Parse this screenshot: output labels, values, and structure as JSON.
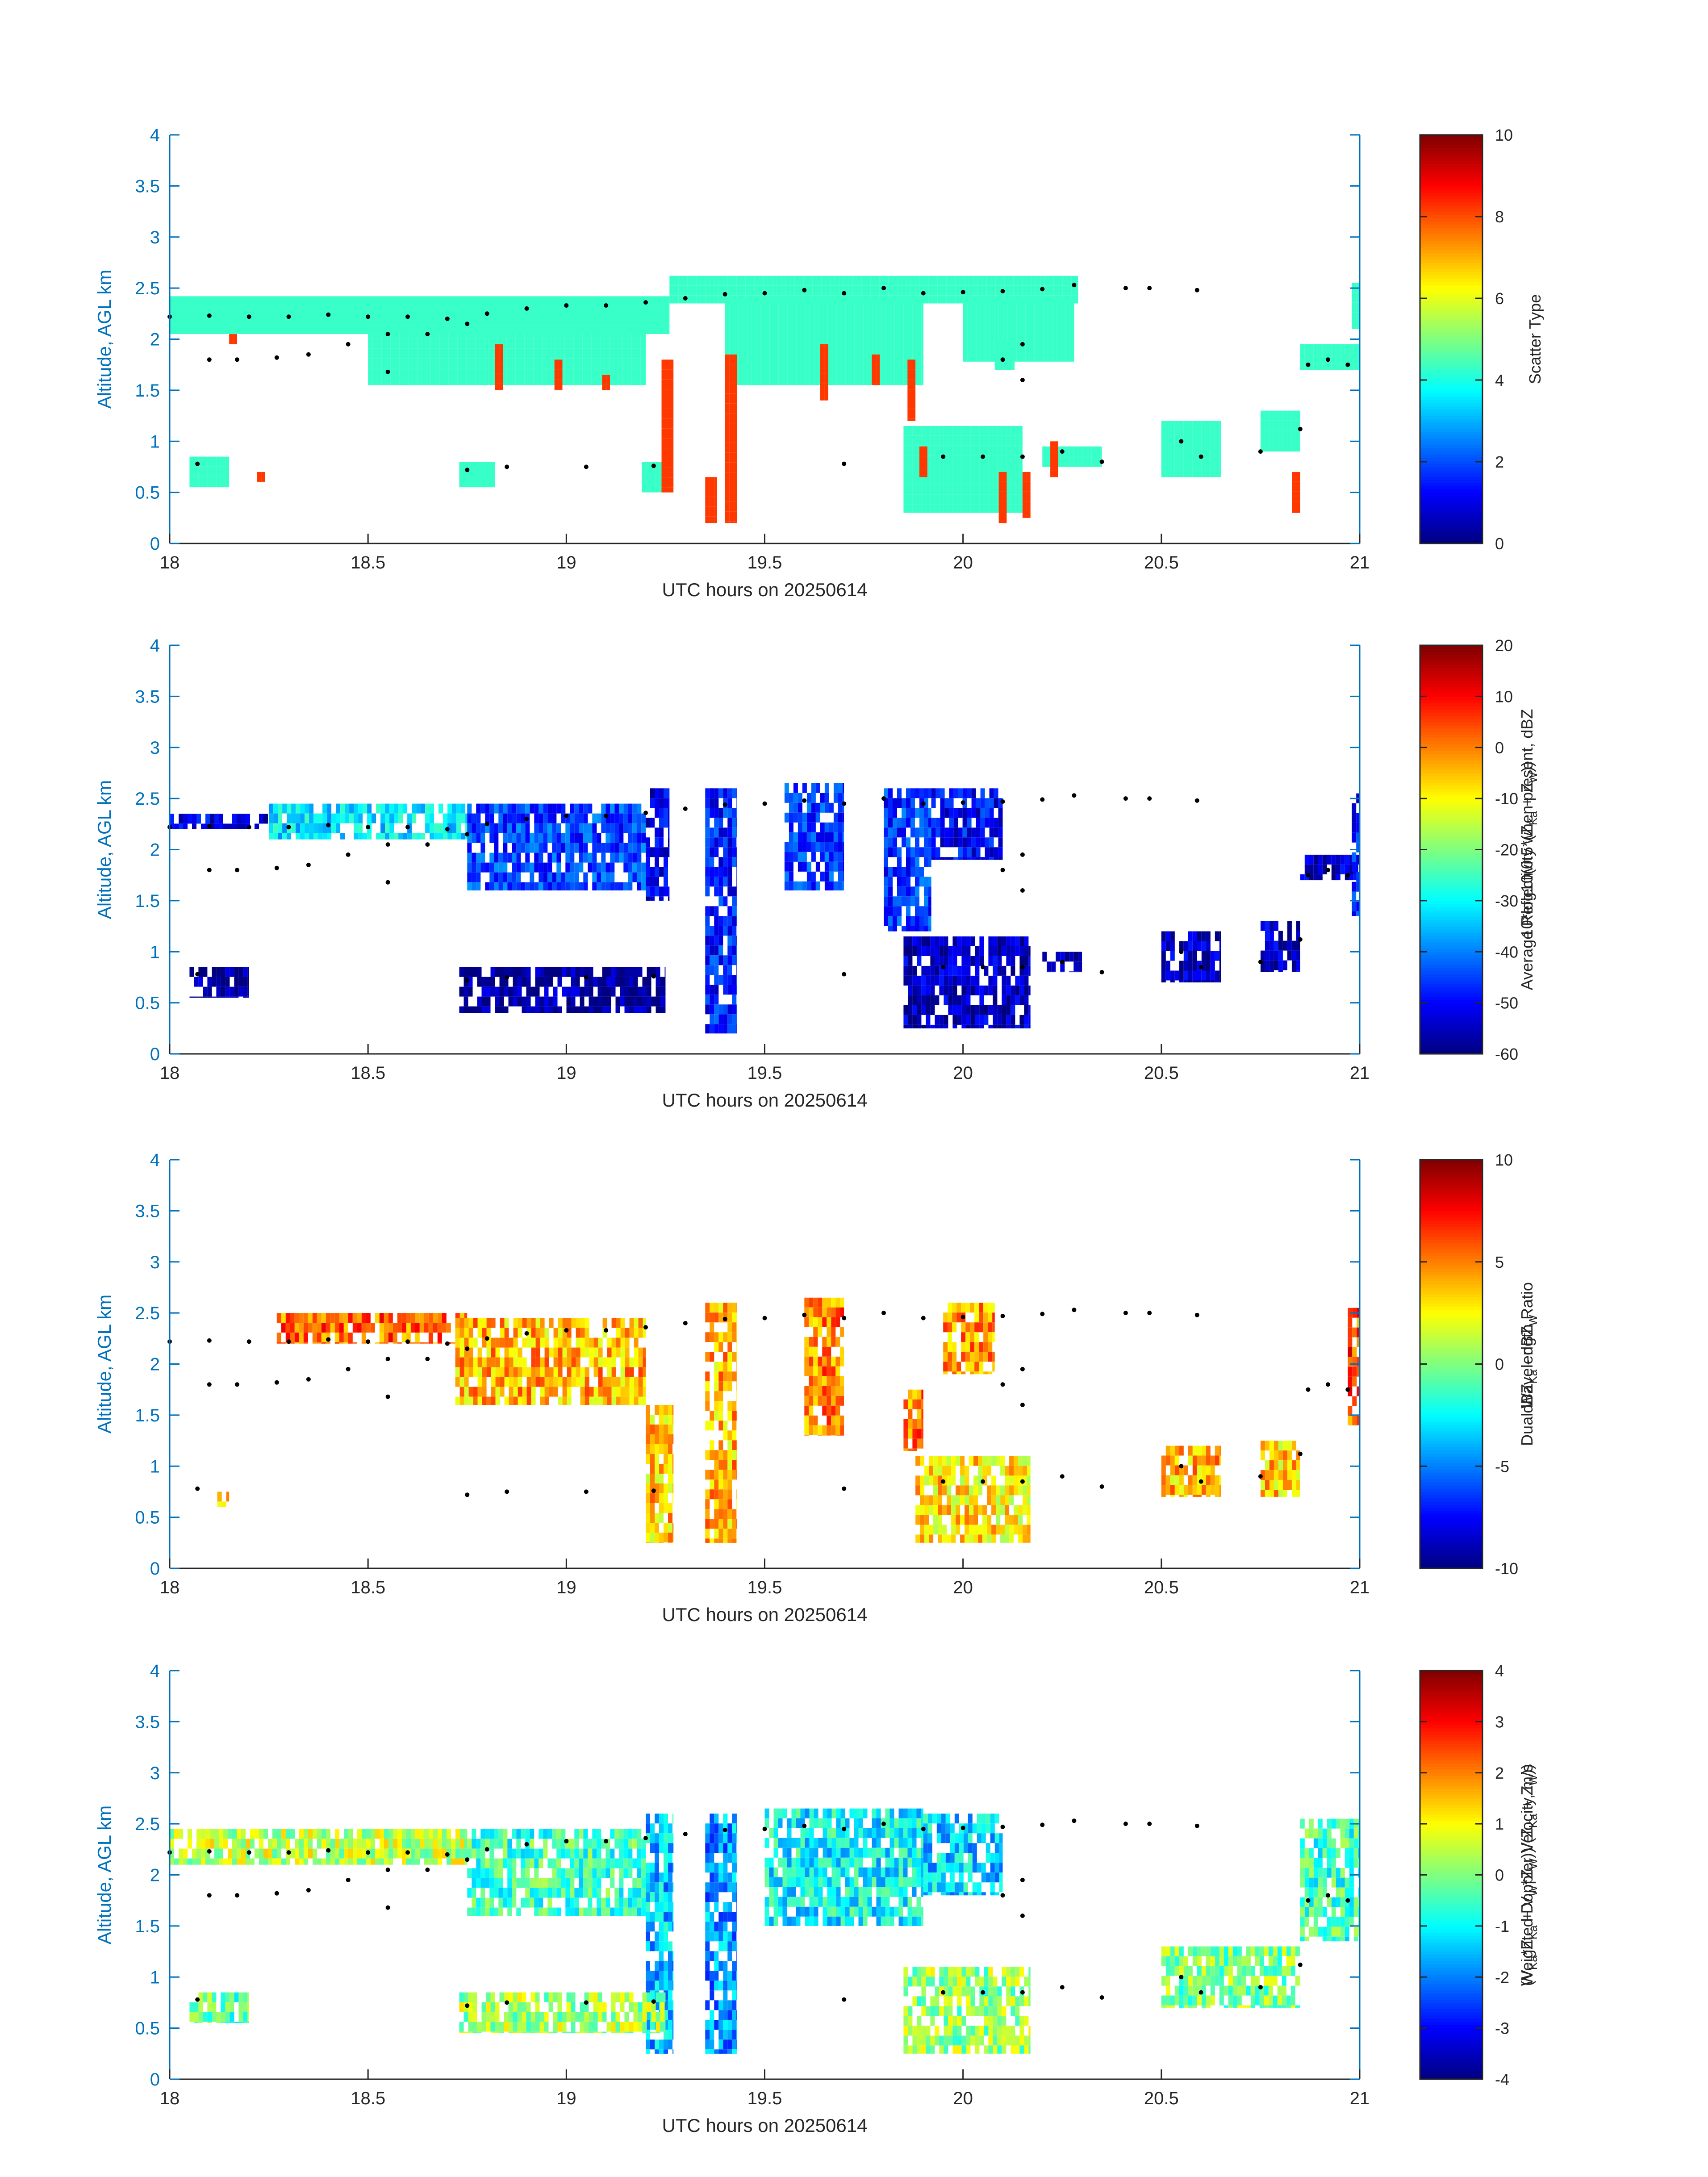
{
  "chart_data": [
    {
      "type": "heatmap",
      "panel": "scatter-type",
      "xlabel": "UTC hours on 20250614",
      "ylabel": "Altitude, AGL km",
      "xlim": [
        18,
        21
      ],
      "ylim": [
        0,
        4
      ],
      "xticks": [
        "18",
        "18.5",
        "19",
        "19.5",
        "20",
        "20.5",
        "21"
      ],
      "yticks": [
        "0",
        "0.5",
        "1",
        "1.5",
        "2",
        "2.5",
        "3",
        "3.5",
        "4"
      ],
      "colorbar": {
        "label_lines": [
          "Scatter Type"
        ],
        "range": [
          0,
          10
        ],
        "ticks": [
          "0",
          "2",
          "4",
          "6",
          "8",
          "10"
        ],
        "colormap": "jet"
      },
      "grid": false,
      "regions": [
        {
          "x": [
            18.0,
            19.26
          ],
          "y": [
            2.05,
            2.42
          ],
          "value": 4.3
        },
        {
          "x": [
            19.26,
            20.29
          ],
          "y": [
            2.35,
            2.62
          ],
          "value": 4.3
        },
        {
          "x": [
            20.0,
            20.28
          ],
          "y": [
            1.78,
            2.4
          ],
          "value": 4.3
        },
        {
          "x": [
            18.5,
            19.2
          ],
          "y": [
            1.55,
            2.1
          ],
          "value": 4.3
        },
        {
          "x": [
            19.4,
            19.9
          ],
          "y": [
            1.55,
            2.4
          ],
          "value": 4.3
        },
        {
          "x": [
            20.08,
            20.13
          ],
          "y": [
            1.7,
            2.0
          ],
          "value": 4.3
        },
        {
          "x": [
            20.85,
            21.0
          ],
          "y": [
            1.7,
            1.95
          ],
          "value": 4.3
        },
        {
          "x": [
            20.98,
            21.0
          ],
          "y": [
            2.1,
            2.55
          ],
          "value": 4.3
        },
        {
          "x": [
            19.85,
            20.15
          ],
          "y": [
            0.3,
            1.15
          ],
          "value": 4.3
        },
        {
          "x": [
            20.2,
            20.35
          ],
          "y": [
            0.75,
            0.95
          ],
          "value": 4.3
        },
        {
          "x": [
            20.5,
            20.65
          ],
          "y": [
            0.65,
            1.2
          ],
          "value": 4.3
        },
        {
          "x": [
            20.75,
            20.85
          ],
          "y": [
            0.9,
            1.3
          ],
          "value": 4.3
        },
        {
          "x": [
            18.05,
            18.15
          ],
          "y": [
            0.55,
            0.85
          ],
          "value": 4.3
        },
        {
          "x": [
            18.73,
            18.82
          ],
          "y": [
            0.55,
            0.8
          ],
          "value": 4.3
        },
        {
          "x": [
            19.19,
            19.26
          ],
          "y": [
            0.5,
            0.8
          ],
          "value": 4.3
        },
        {
          "x": [
            18.82,
            18.84
          ],
          "y": [
            1.5,
            1.95
          ],
          "value": 8.2
        },
        {
          "x": [
            18.97,
            18.99
          ],
          "y": [
            1.5,
            1.8
          ],
          "value": 8.2
        },
        {
          "x": [
            19.09,
            19.11
          ],
          "y": [
            1.5,
            1.65
          ],
          "value": 8.2
        },
        {
          "x": [
            19.24,
            19.27
          ],
          "y": [
            0.5,
            1.8
          ],
          "value": 8.2
        },
        {
          "x": [
            19.35,
            19.38
          ],
          "y": [
            0.2,
            0.65
          ],
          "value": 8.2
        },
        {
          "x": [
            19.4,
            19.43
          ],
          "y": [
            0.2,
            1.85
          ],
          "value": 8.2
        },
        {
          "x": [
            19.64,
            19.66
          ],
          "y": [
            1.4,
            1.95
          ],
          "value": 8.2
        },
        {
          "x": [
            19.77,
            19.79
          ],
          "y": [
            1.55,
            1.85
          ],
          "value": 8.2
        },
        {
          "x": [
            19.86,
            19.88
          ],
          "y": [
            1.2,
            1.8
          ],
          "value": 8.2
        },
        {
          "x": [
            19.89,
            19.91
          ],
          "y": [
            0.65,
            0.95
          ],
          "value": 8.2
        },
        {
          "x": [
            20.09,
            20.11
          ],
          "y": [
            0.2,
            0.7
          ],
          "value": 8.2
        },
        {
          "x": [
            20.15,
            20.17
          ],
          "y": [
            0.25,
            0.7
          ],
          "value": 8.2
        },
        {
          "x": [
            20.22,
            20.24
          ],
          "y": [
            0.65,
            1.0
          ],
          "value": 8.2
        },
        {
          "x": [
            20.83,
            20.85
          ],
          "y": [
            0.3,
            0.7
          ],
          "value": 8.2
        },
        {
          "x": [
            18.22,
            18.24
          ],
          "y": [
            0.6,
            0.7
          ],
          "value": 8.2
        },
        {
          "x": [
            18.15,
            18.17
          ],
          "y": [
            1.95,
            2.05
          ],
          "value": 8.2
        }
      ]
    },
    {
      "type": "heatmap",
      "panel": "reflectivity",
      "xlabel": "UTC hours on 20250614",
      "ylabel": "Altitude, AGL km",
      "xlim": [
        18,
        21
      ],
      "ylim": [
        0,
        4
      ],
      "xticks": [
        "18",
        "18.5",
        "19",
        "19.5",
        "20",
        "20.5",
        "21"
      ],
      "yticks": [
        "0",
        "0.5",
        "1",
        "1.5",
        "2",
        "2.5",
        "3",
        "3.5",
        "4"
      ],
      "colorbar": {
        "label_lines": [
          "Average Reflectivity when present, dBZ",
          "10*log10(0.5*(Z",
          "Ka",
          " + Z",
          "W",
          "))"
        ],
        "range": [
          -60,
          20
        ],
        "ticks": [
          "-60",
          "-50",
          "-40",
          "-30",
          "-20",
          "-10",
          "0",
          "10",
          "20"
        ],
        "colormap": "jet"
      },
      "grid": false,
      "regions": [
        {
          "x": [
            18.0,
            18.25
          ],
          "y": [
            2.2,
            2.35
          ],
          "value": -52
        },
        {
          "x": [
            18.25,
            18.75
          ],
          "y": [
            2.1,
            2.45
          ],
          "value": -32
        },
        {
          "x": [
            18.75,
            19.2
          ],
          "y": [
            1.6,
            2.45
          ],
          "value": -45
        },
        {
          "x": [
            19.2,
            19.26
          ],
          "y": [
            1.5,
            2.6
          ],
          "value": -52
        },
        {
          "x": [
            19.35,
            19.43
          ],
          "y": [
            0.2,
            2.6
          ],
          "value": -48
        },
        {
          "x": [
            19.55,
            19.7
          ],
          "y": [
            1.6,
            2.65
          ],
          "value": -46
        },
        {
          "x": [
            19.8,
            19.92
          ],
          "y": [
            1.2,
            2.6
          ],
          "value": -46
        },
        {
          "x": [
            19.92,
            20.1
          ],
          "y": [
            1.9,
            2.6
          ],
          "value": -50
        },
        {
          "x": [
            19.85,
            20.17
          ],
          "y": [
            0.25,
            1.15
          ],
          "value": -55
        },
        {
          "x": [
            20.2,
            20.3
          ],
          "y": [
            0.8,
            1.0
          ],
          "value": -57
        },
        {
          "x": [
            20.5,
            20.65
          ],
          "y": [
            0.7,
            1.2
          ],
          "value": -55
        },
        {
          "x": [
            20.75,
            20.85
          ],
          "y": [
            0.8,
            1.3
          ],
          "value": -55
        },
        {
          "x": [
            20.85,
            21.0
          ],
          "y": [
            1.7,
            1.95
          ],
          "value": -55
        },
        {
          "x": [
            20.98,
            21.0
          ],
          "y": [
            1.35,
            2.55
          ],
          "value": -48
        },
        {
          "x": [
            18.05,
            18.2
          ],
          "y": [
            0.55,
            0.85
          ],
          "value": -58
        },
        {
          "x": [
            18.73,
            19.25
          ],
          "y": [
            0.4,
            0.85
          ],
          "value": -58
        }
      ]
    },
    {
      "type": "heatmap",
      "panel": "dual-wavelength-ratio",
      "xlabel": "UTC hours on 20250614",
      "ylabel": "Altitude, AGL km",
      "xlim": [
        18,
        21
      ],
      "ylim": [
        0,
        4
      ],
      "xticks": [
        "18",
        "18.5",
        "19",
        "19.5",
        "20",
        "20.5",
        "21"
      ],
      "yticks": [
        "0",
        "0.5",
        "1",
        "1.5",
        "2",
        "2.5",
        "3",
        "3.5",
        "4"
      ],
      "colorbar": {
        "label_lines": [
          "Dual Wavelength Ratio",
          "dBZ",
          "Ka",
          " - dBZ",
          "W"
        ],
        "range": [
          -10,
          10
        ],
        "ticks": [
          "-10",
          "-5",
          "0",
          "5",
          "10"
        ],
        "colormap": "jet"
      },
      "grid": false,
      "regions": [
        {
          "x": [
            18.27,
            18.75
          ],
          "y": [
            2.2,
            2.5
          ],
          "value": 5.5
        },
        {
          "x": [
            18.72,
            19.2
          ],
          "y": [
            1.6,
            2.45
          ],
          "value": 4.0
        },
        {
          "x": [
            19.2,
            19.27
          ],
          "y": [
            0.25,
            1.6
          ],
          "value": 3.5
        },
        {
          "x": [
            19.35,
            19.43
          ],
          "y": [
            0.25,
            2.6
          ],
          "value": 4.0
        },
        {
          "x": [
            19.6,
            19.7
          ],
          "y": [
            1.3,
            2.65
          ],
          "value": 5.0
        },
        {
          "x": [
            19.85,
            19.9
          ],
          "y": [
            1.15,
            1.75
          ],
          "value": 5.0
        },
        {
          "x": [
            19.95,
            20.08
          ],
          "y": [
            1.9,
            2.6
          ],
          "value": 4.5
        },
        {
          "x": [
            19.88,
            20.17
          ],
          "y": [
            0.25,
            1.1
          ],
          "value": 3.0
        },
        {
          "x": [
            20.5,
            20.65
          ],
          "y": [
            0.7,
            1.2
          ],
          "value": 4.0
        },
        {
          "x": [
            20.75,
            20.85
          ],
          "y": [
            0.7,
            1.25
          ],
          "value": 3.5
        },
        {
          "x": [
            20.97,
            21.0
          ],
          "y": [
            1.4,
            2.55
          ],
          "value": 6.0
        },
        {
          "x": [
            18.12,
            18.15
          ],
          "y": [
            0.6,
            0.75
          ],
          "value": 3.0
        }
      ]
    },
    {
      "type": "heatmap",
      "panel": "doppler-velocity",
      "xlabel": "UTC hours on 20250614",
      "ylabel": "Altitude, AGL km",
      "xlim": [
        18,
        21
      ],
      "ylim": [
        0,
        4
      ],
      "xticks": [
        "18",
        "18.5",
        "19",
        "19.5",
        "20",
        "20.5",
        "21"
      ],
      "yticks": [
        "0",
        "0.5",
        "1",
        "1.5",
        "2",
        "2.5",
        "3",
        "3.5",
        "4"
      ],
      "colorbar": {
        "label_lines": [
          "Weighted Doppler Velocity, m/s",
          "(V",
          "Ka",
          "*Z",
          "Ka",
          " + V",
          "W",
          "*Z",
          "W",
          "))/(Z",
          "Ka",
          " + Z",
          "W",
          "))"
        ],
        "range": [
          -4,
          4
        ],
        "ticks": [
          "-4",
          "-3",
          "-2",
          "-1",
          "0",
          "1",
          "2",
          "3",
          "4"
        ],
        "colormap": "jet"
      },
      "grid": false,
      "regions": [
        {
          "x": [
            18.0,
            18.75
          ],
          "y": [
            2.1,
            2.45
          ],
          "value": 0.5
        },
        {
          "x": [
            18.75,
            19.2
          ],
          "y": [
            1.6,
            2.45
          ],
          "value": -0.5
        },
        {
          "x": [
            19.2,
            19.27
          ],
          "y": [
            0.25,
            2.6
          ],
          "value": -1.5
        },
        {
          "x": [
            19.35,
            19.43
          ],
          "y": [
            0.25,
            2.6
          ],
          "value": -1.8
        },
        {
          "x": [
            19.5,
            19.9
          ],
          "y": [
            1.5,
            2.65
          ],
          "value": -1.0
        },
        {
          "x": [
            19.9,
            20.1
          ],
          "y": [
            1.8,
            2.6
          ],
          "value": -1.3
        },
        {
          "x": [
            19.85,
            20.17
          ],
          "y": [
            0.25,
            1.1
          ],
          "value": 0.2
        },
        {
          "x": [
            20.5,
            20.85
          ],
          "y": [
            0.7,
            1.3
          ],
          "value": 0.0
        },
        {
          "x": [
            20.85,
            21.0
          ],
          "y": [
            1.35,
            2.55
          ],
          "value": -0.5
        },
        {
          "x": [
            18.05,
            18.2
          ],
          "y": [
            0.55,
            0.85
          ],
          "value": -0.3
        },
        {
          "x": [
            18.73,
            19.25
          ],
          "y": [
            0.45,
            0.85
          ],
          "value": 0.3
        }
      ]
    }
  ],
  "cloud_base_dots": {
    "upper": [
      [
        18.0,
        2.22
      ],
      [
        18.1,
        2.23
      ],
      [
        18.2,
        2.22
      ],
      [
        18.3,
        2.22
      ],
      [
        18.4,
        2.24
      ],
      [
        18.5,
        2.22
      ],
      [
        18.6,
        2.22
      ],
      [
        18.7,
        2.2
      ],
      [
        18.8,
        2.25
      ],
      [
        18.9,
        2.3
      ],
      [
        19.0,
        2.33
      ],
      [
        19.1,
        2.33
      ],
      [
        19.2,
        2.36
      ],
      [
        19.3,
        2.4
      ],
      [
        19.4,
        2.44
      ],
      [
        19.5,
        2.45
      ],
      [
        19.6,
        2.48
      ],
      [
        19.7,
        2.45
      ],
      [
        19.8,
        2.5
      ],
      [
        19.9,
        2.45
      ],
      [
        20.0,
        2.46
      ],
      [
        20.1,
        2.47
      ],
      [
        20.2,
        2.49
      ],
      [
        20.28,
        2.53
      ],
      [
        20.41,
        2.5
      ],
      [
        20.47,
        2.5
      ],
      [
        20.59,
        2.48
      ]
    ],
    "lower": [
      [
        18.1,
        1.8
      ],
      [
        18.17,
        1.8
      ],
      [
        18.27,
        1.82
      ],
      [
        18.35,
        1.85
      ],
      [
        18.45,
        1.95
      ],
      [
        18.55,
        2.05
      ],
      [
        18.65,
        2.05
      ],
      [
        18.75,
        2.15
      ],
      [
        20.1,
        1.8
      ],
      [
        20.15,
        1.95
      ],
      [
        20.87,
        1.75
      ],
      [
        20.92,
        1.8
      ],
      [
        20.97,
        1.75
      ],
      [
        18.55,
        1.68
      ],
      [
        20.15,
        1.6
      ]
    ],
    "low_level": [
      [
        18.07,
        0.78
      ],
      [
        18.75,
        0.72
      ],
      [
        18.85,
        0.75
      ],
      [
        19.05,
        0.75
      ],
      [
        19.22,
        0.76
      ],
      [
        19.7,
        0.78
      ],
      [
        19.95,
        0.85
      ],
      [
        20.05,
        0.85
      ],
      [
        20.15,
        0.85
      ],
      [
        20.25,
        0.9
      ],
      [
        20.35,
        0.8
      ],
      [
        20.55,
        1.0
      ],
      [
        20.6,
        0.85
      ],
      [
        20.75,
        0.9
      ],
      [
        20.85,
        1.12
      ]
    ]
  }
}
